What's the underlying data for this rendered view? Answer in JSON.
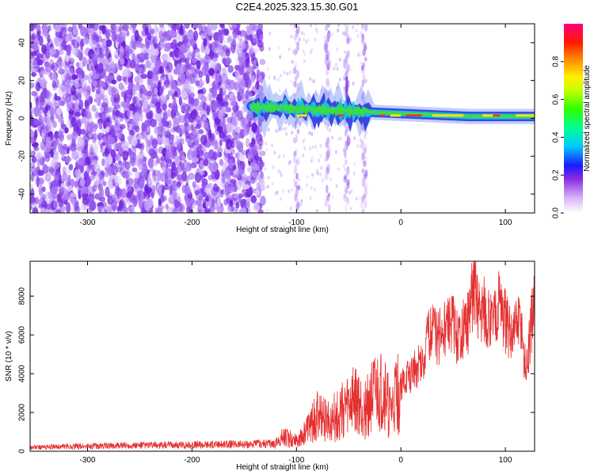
{
  "title": "C2E4.2025.323.15.30.G01",
  "colors": {
    "spectrogram_low": "#6a1ed8",
    "signal_line": "#e53030",
    "axis": "#000000"
  },
  "chart_data": [
    {
      "type": "heatmap",
      "xlabel": "Height of straight line (km)",
      "ylabel": "Frequency (Hz)",
      "xlim": [
        -355,
        128
      ],
      "ylim": [
        -50,
        50
      ],
      "xticks": [
        -300,
        -200,
        -100,
        0,
        100
      ],
      "yticks": [
        -40,
        -20,
        0,
        20,
        40
      ],
      "colorbar": {
        "label": "Normalized spectral amplitude",
        "range": [
          0.0,
          1.0
        ],
        "ticks": [
          "0.0",
          "0.2",
          "0.4",
          "0.6",
          "0.8"
        ]
      },
      "features": {
        "noise_region_x": [
          -355,
          -132
        ],
        "signal_start_x": -143,
        "signal_frequency_hz": [
          6,
          1
        ],
        "vertical_streaks_x": [
          -100,
          -70,
          -52,
          -35
        ]
      }
    },
    {
      "type": "line",
      "xlabel": "Height of straight line (km)",
      "ylabel": "SNR (10 * v/v)",
      "xlim": [
        -355,
        128
      ],
      "ylim": [
        0,
        9800
      ],
      "xticks": [
        -300,
        -200,
        -100,
        0,
        100
      ],
      "yticks": [
        0,
        2000,
        4000,
        6000,
        8000
      ],
      "series": [
        {
          "points": [
            [
              -355,
              200
            ],
            [
              -330,
              230
            ],
            [
              -300,
              260
            ],
            [
              -250,
              300
            ],
            [
              -200,
              330
            ],
            [
              -150,
              360
            ],
            [
              -120,
              400
            ],
            [
              -112,
              750
            ],
            [
              -104,
              600
            ],
            [
              -95,
              700
            ],
            [
              -85,
              1400
            ],
            [
              -80,
              1800
            ],
            [
              -70,
              1500
            ],
            [
              -60,
              1900
            ],
            [
              -50,
              2300
            ],
            [
              -45,
              2600
            ],
            [
              -35,
              2200
            ],
            [
              -25,
              2800
            ],
            [
              -15,
              3000
            ],
            [
              -10,
              1800
            ],
            [
              -5,
              2800
            ],
            [
              0,
              3300
            ],
            [
              10,
              4000
            ],
            [
              20,
              4600
            ],
            [
              25,
              5600
            ],
            [
              30,
              6600
            ],
            [
              35,
              5800
            ],
            [
              40,
              6200
            ],
            [
              50,
              6500
            ],
            [
              55,
              5600
            ],
            [
              60,
              6300
            ],
            [
              65,
              6700
            ],
            [
              70,
              8600
            ],
            [
              75,
              7300
            ],
            [
              80,
              7500
            ],
            [
              85,
              6600
            ],
            [
              90,
              6900
            ],
            [
              95,
              7800
            ],
            [
              100,
              6700
            ],
            [
              105,
              5900
            ],
            [
              110,
              6300
            ],
            [
              115,
              6500
            ],
            [
              120,
              3900
            ],
            [
              125,
              6600
            ],
            [
              128,
              8000
            ]
          ]
        }
      ]
    }
  ]
}
